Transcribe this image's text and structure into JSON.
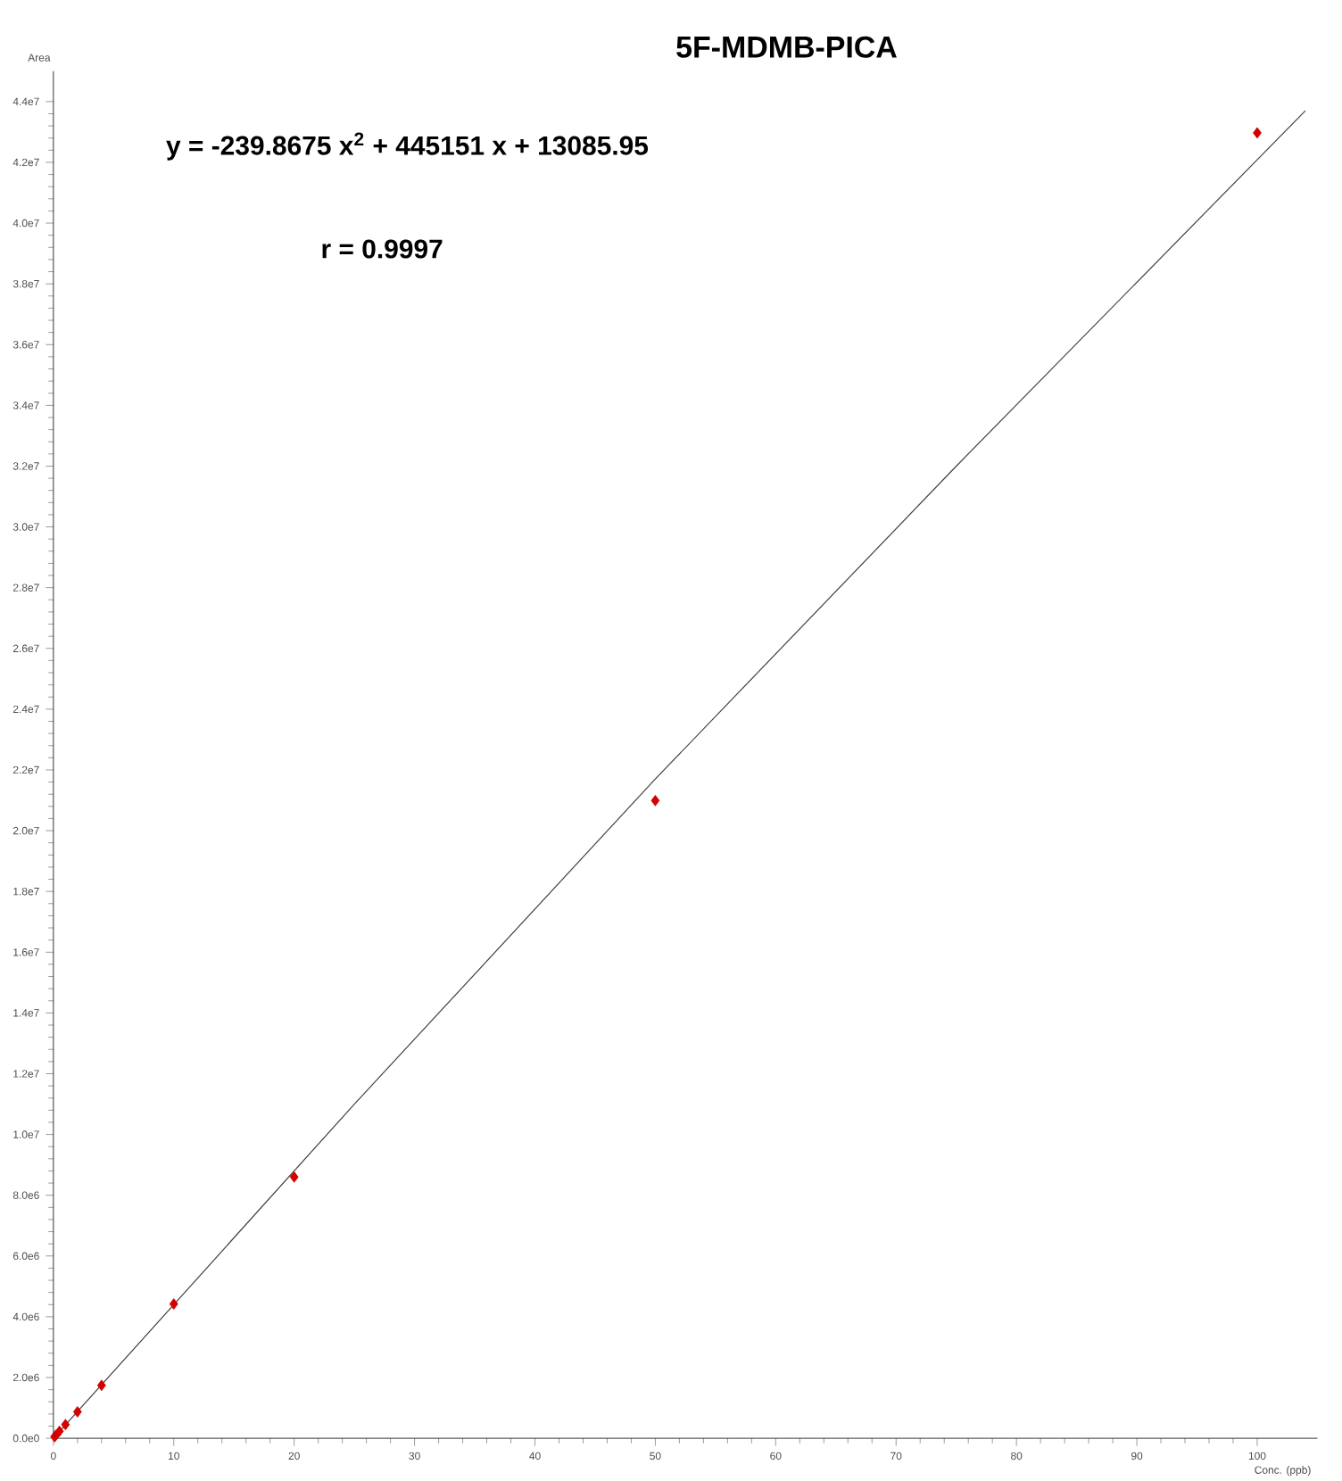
{
  "chart_data": {
    "type": "scatter",
    "title": "5F-MDMB-PICA",
    "xlabel": "Conc. (ppb)",
    "ylabel": "Area",
    "annotations": [
      "y = -239.8675 x$^{2}$ + 445151 x + 13085.95",
      "r = 0.9997"
    ],
    "xlim": [
      0,
      105
    ],
    "ylim": [
      0,
      45000000
    ],
    "xticks": [
      0,
      10,
      20,
      30,
      40,
      50,
      60,
      70,
      80,
      90,
      100
    ],
    "yticks": [
      {
        "value": 0,
        "label": "0.0e0"
      },
      {
        "value": 2000000,
        "label": "2.0e6"
      },
      {
        "value": 4000000,
        "label": "4.0e6"
      },
      {
        "value": 6000000,
        "label": "6.0e6"
      },
      {
        "value": 8000000,
        "label": "8.0e6"
      },
      {
        "value": 10000000,
        "label": "1.0e7"
      },
      {
        "value": 12000000,
        "label": "1.2e7"
      },
      {
        "value": 14000000,
        "label": "1.4e7"
      },
      {
        "value": 16000000,
        "label": "1.6e7"
      },
      {
        "value": 18000000,
        "label": "1.8e7"
      },
      {
        "value": 20000000,
        "label": "2.0e7"
      },
      {
        "value": 22000000,
        "label": "2.2e7"
      },
      {
        "value": 24000000,
        "label": "2.4e7"
      },
      {
        "value": 26000000,
        "label": "2.6e7"
      },
      {
        "value": 28000000,
        "label": "2.8e7"
      },
      {
        "value": 30000000,
        "label": "3.0e7"
      },
      {
        "value": 32000000,
        "label": "3.2e7"
      },
      {
        "value": 34000000,
        "label": "3.4e7"
      },
      {
        "value": 36000000,
        "label": "3.6e7"
      },
      {
        "value": 38000000,
        "label": "3.8e7"
      },
      {
        "value": 40000000,
        "label": "4.0e7"
      },
      {
        "value": 42000000,
        "label": "4.2e7"
      },
      {
        "value": 44000000,
        "label": "4.4e7"
      }
    ],
    "series": [
      {
        "type": "line",
        "color": "#404040",
        "marker": "none",
        "line_style": "solid",
        "x": [
          0,
          25,
          50,
          75,
          104
        ],
        "values": [
          0,
          11000000,
          21700000,
          32000000,
          43700000
        ]
      },
      {
        "color": "#d40000",
        "marker": "diamond",
        "x": [
          0.1,
          0.2,
          0.5,
          1,
          2,
          4,
          10,
          20,
          50,
          100
        ],
        "values": [
          50000,
          100000,
          230000,
          450000,
          870000,
          1740000,
          4420000,
          8600000,
          20990000,
          42970000
        ]
      }
    ]
  }
}
